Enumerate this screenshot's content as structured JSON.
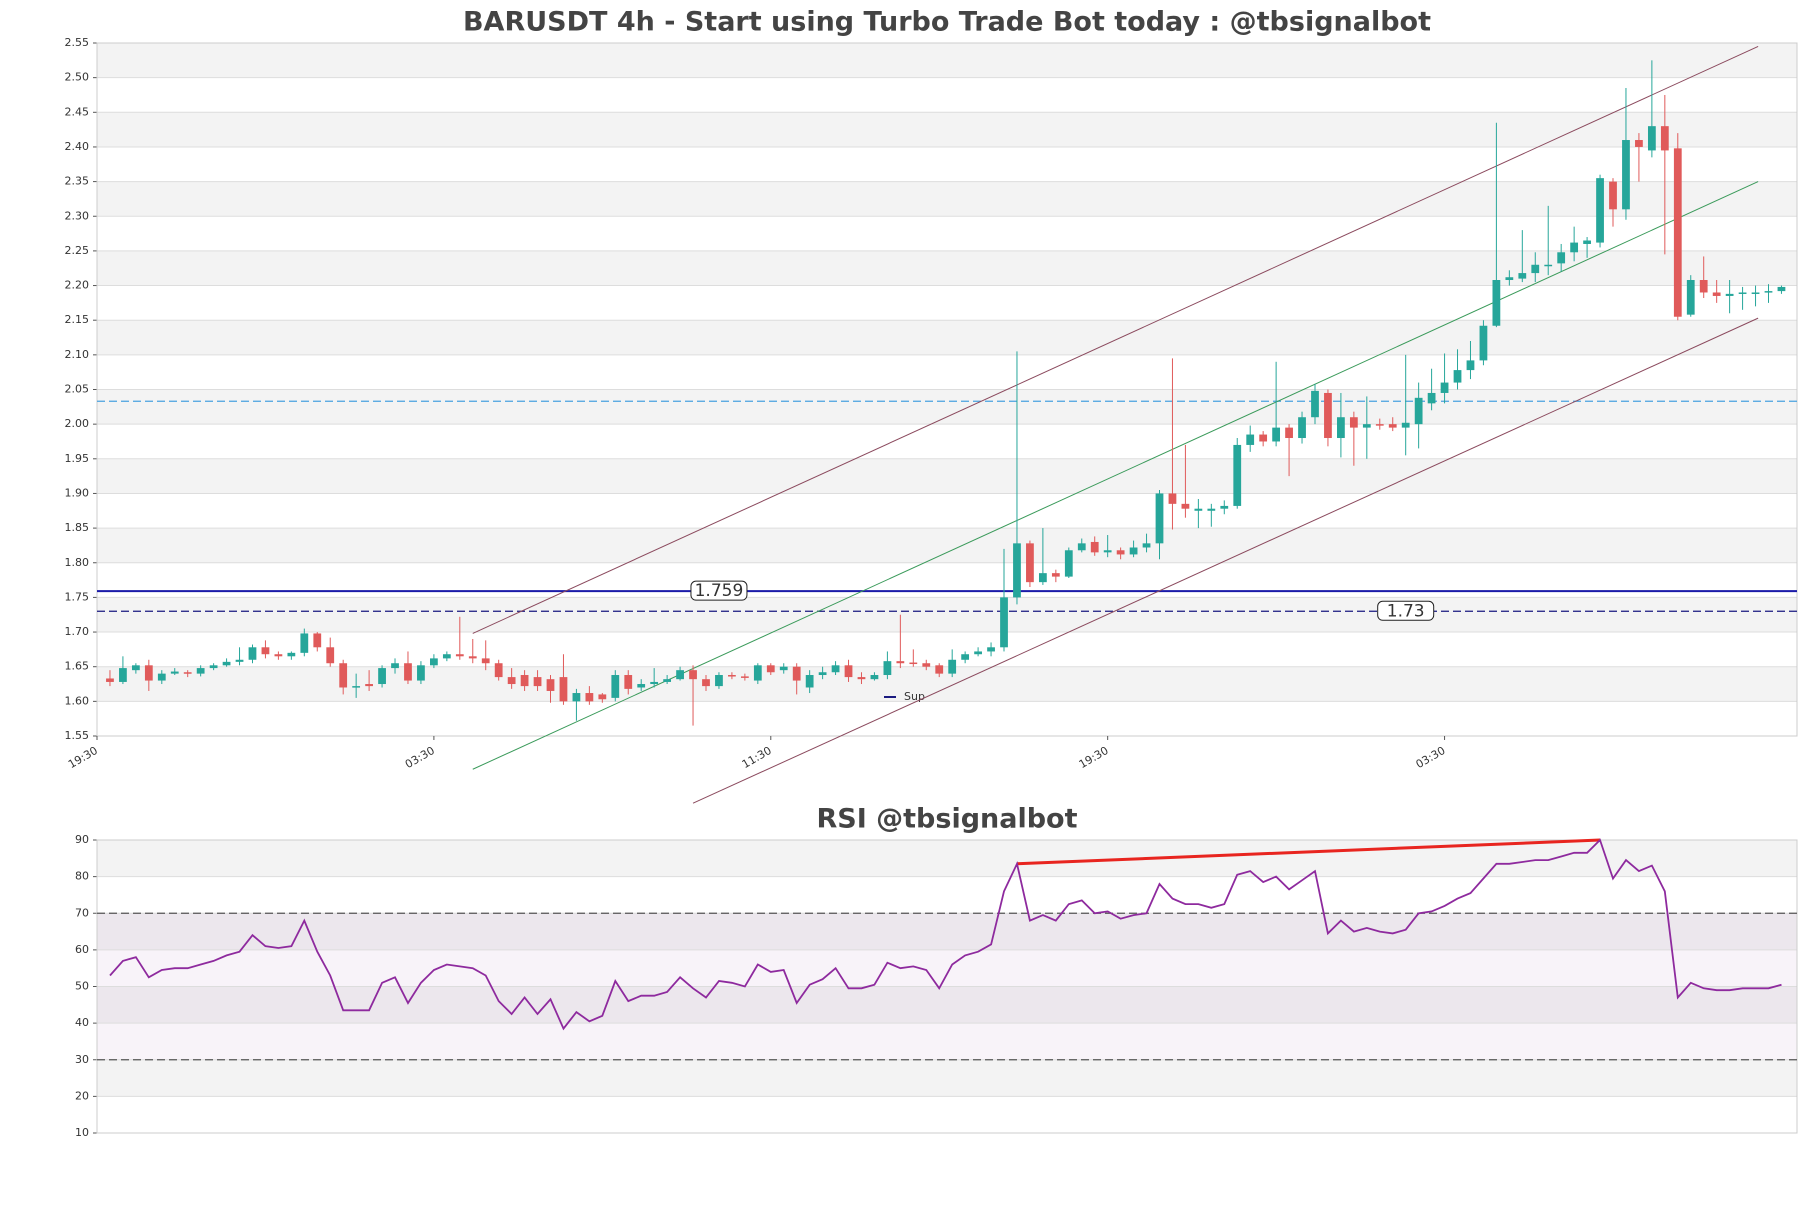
{
  "chart_data": [
    {
      "type": "candlestick",
      "title": "BARUSDT 4h - Start using Turbo Trade Bot today : @tbsignalbot",
      "up_color": "#26a69a",
      "down_color": "#e05a5a",
      "open": [
        1.633,
        1.628,
        1.645,
        1.652,
        1.63,
        1.64,
        1.642,
        1.64,
        1.648,
        1.652,
        1.657,
        1.66,
        1.678,
        1.668,
        1.665,
        1.67,
        1.698,
        1.678,
        1.655,
        1.62,
        1.625,
        1.625,
        1.648,
        1.655,
        1.63,
        1.652,
        1.662,
        1.668,
        1.665,
        1.662,
        1.655,
        1.635,
        1.638,
        1.635,
        1.632,
        1.635,
        1.6,
        1.612,
        1.61,
        1.605,
        1.638,
        1.62,
        1.625,
        1.628,
        1.632,
        1.645,
        1.632,
        1.622,
        1.638,
        1.636,
        1.63,
        1.652,
        1.645,
        1.65,
        1.62,
        1.638,
        1.642,
        1.652,
        1.635,
        1.632,
        1.638,
        1.658,
        1.656,
        1.655,
        1.652,
        1.64,
        1.66,
        1.668,
        1.672,
        1.678,
        1.75,
        1.828,
        1.772,
        1.785,
        1.78,
        1.818,
        1.83,
        1.815,
        1.818,
        1.812,
        1.822,
        1.828,
        1.9,
        1.885,
        1.875,
        1.875,
        1.878,
        1.882,
        1.97,
        1.985,
        1.975,
        1.995,
        1.98,
        2.01,
        2.045,
        1.98,
        2.01,
        1.995,
        2.0,
        2.0,
        1.995,
        2.0,
        2.03,
        2.045,
        2.06,
        2.078,
        2.092,
        2.142,
        2.208,
        2.21,
        2.218,
        2.228,
        2.232,
        2.248,
        2.26,
        2.262,
        2.35,
        2.31,
        2.41,
        2.395,
        2.43,
        2.398,
        2.158,
        2.208,
        2.19,
        2.185,
        2.188,
        2.188,
        2.19,
        2.192
      ],
      "high": [
        1.645,
        1.665,
        1.655,
        1.66,
        1.645,
        1.648,
        1.645,
        1.652,
        1.655,
        1.662,
        1.678,
        1.682,
        1.688,
        1.672,
        1.672,
        1.705,
        1.7,
        1.692,
        1.66,
        1.64,
        1.645,
        1.652,
        1.662,
        1.672,
        1.658,
        1.668,
        1.672,
        1.722,
        1.69,
        1.688,
        1.66,
        1.648,
        1.645,
        1.645,
        1.638,
        1.668,
        1.618,
        1.622,
        1.612,
        1.645,
        1.645,
        1.632,
        1.648,
        1.638,
        1.65,
        1.652,
        1.638,
        1.642,
        1.642,
        1.64,
        1.655,
        1.655,
        1.655,
        1.655,
        1.645,
        1.65,
        1.658,
        1.66,
        1.642,
        1.642,
        1.672,
        1.725,
        1.675,
        1.66,
        1.655,
        1.675,
        1.672,
        1.678,
        1.685,
        1.82,
        2.105,
        1.832,
        1.85,
        1.79,
        1.822,
        1.835,
        1.838,
        1.84,
        1.822,
        1.832,
        1.842,
        1.905,
        2.095,
        1.97,
        1.892,
        1.885,
        1.89,
        1.98,
        1.998,
        1.99,
        2.09,
        2.0,
        2.018,
        2.058,
        2.05,
        2.045,
        2.018,
        2.04,
        2.008,
        2.01,
        2.1,
        2.06,
        2.08,
        2.102,
        2.108,
        2.12,
        2.15,
        2.435,
        2.222,
        2.28,
        2.248,
        2.315,
        2.26,
        2.285,
        2.27,
        2.36,
        2.355,
        2.485,
        2.42,
        2.525,
        2.475,
        2.42,
        2.215,
        2.242,
        2.208,
        2.208,
        2.198,
        2.2,
        2.202,
        2.2
      ],
      "low": [
        1.622,
        1.625,
        1.64,
        1.615,
        1.625,
        1.638,
        1.635,
        1.636,
        1.645,
        1.65,
        1.652,
        1.655,
        1.662,
        1.66,
        1.66,
        1.665,
        1.672,
        1.65,
        1.61,
        1.605,
        1.615,
        1.62,
        1.64,
        1.625,
        1.625,
        1.648,
        1.658,
        1.66,
        1.655,
        1.645,
        1.63,
        1.618,
        1.615,
        1.615,
        1.598,
        1.595,
        1.572,
        1.595,
        1.598,
        1.6,
        1.61,
        1.615,
        1.62,
        1.625,
        1.63,
        1.565,
        1.615,
        1.618,
        1.632,
        1.63,
        1.625,
        1.638,
        1.64,
        1.61,
        1.612,
        1.632,
        1.638,
        1.628,
        1.625,
        1.63,
        1.632,
        1.648,
        1.65,
        1.645,
        1.635,
        1.635,
        1.655,
        1.665,
        1.665,
        1.672,
        1.74,
        1.765,
        1.768,
        1.772,
        1.778,
        1.815,
        1.81,
        1.808,
        1.805,
        1.808,
        1.815,
        1.805,
        1.848,
        1.865,
        1.85,
        1.852,
        1.87,
        1.878,
        1.96,
        1.968,
        1.968,
        1.925,
        1.972,
        2.0,
        1.968,
        1.952,
        1.94,
        1.95,
        1.992,
        1.99,
        1.955,
        1.965,
        2.02,
        2.03,
        2.05,
        2.065,
        2.085,
        2.14,
        2.2,
        2.205,
        2.205,
        2.215,
        2.22,
        2.235,
        2.24,
        2.255,
        2.285,
        2.295,
        2.35,
        2.385,
        2.245,
        2.15,
        2.155,
        2.182,
        2.175,
        2.16,
        2.165,
        2.17,
        2.175,
        2.188
      ],
      "close": [
        1.628,
        1.648,
        1.652,
        1.63,
        1.64,
        1.643,
        1.64,
        1.648,
        1.652,
        1.657,
        1.66,
        1.678,
        1.668,
        1.665,
        1.67,
        1.698,
        1.678,
        1.655,
        1.62,
        1.622,
        1.622,
        1.648,
        1.655,
        1.63,
        1.652,
        1.662,
        1.668,
        1.665,
        1.662,
        1.655,
        1.635,
        1.625,
        1.622,
        1.622,
        1.615,
        1.6,
        1.612,
        1.6,
        1.603,
        1.638,
        1.618,
        1.625,
        1.628,
        1.632,
        1.645,
        1.632,
        1.622,
        1.638,
        1.636,
        1.634,
        1.652,
        1.642,
        1.65,
        1.63,
        1.638,
        1.642,
        1.652,
        1.635,
        1.632,
        1.638,
        1.658,
        1.655,
        1.655,
        1.65,
        1.64,
        1.66,
        1.668,
        1.672,
        1.678,
        1.75,
        1.828,
        1.772,
        1.785,
        1.78,
        1.818,
        1.828,
        1.815,
        1.818,
        1.812,
        1.822,
        1.828,
        1.9,
        1.885,
        1.878,
        1.878,
        1.878,
        1.882,
        1.97,
        1.985,
        1.975,
        1.995,
        1.98,
        2.01,
        2.048,
        1.98,
        2.01,
        1.995,
        2.0,
        1.998,
        1.995,
        2.002,
        2.038,
        2.045,
        2.06,
        2.078,
        2.092,
        2.142,
        2.208,
        2.212,
        2.218,
        2.23,
        2.23,
        2.248,
        2.262,
        2.265,
        2.355,
        2.31,
        2.41,
        2.4,
        2.43,
        2.395,
        2.155,
        2.208,
        2.19,
        2.185,
        2.188,
        2.19,
        2.19,
        2.192,
        2.198
      ],
      "xlim": [
        -1,
        130.2
      ],
      "xticks": [
        {
          "value": -1,
          "label": "19:30"
        },
        {
          "value": 25,
          "label": "03:30"
        },
        {
          "value": 51,
          "label": "11:30"
        },
        {
          "value": 77,
          "label": "19:30"
        },
        {
          "value": 103,
          "label": "03:30"
        }
      ],
      "ylim": [
        1.55,
        2.55
      ],
      "yticks": [
        1.55,
        {
          "value": 1.6,
          "label": "1.60"
        },
        1.65,
        {
          "value": 1.7,
          "label": "1.70"
        },
        1.75,
        {
          "value": 1.8,
          "label": "1.80"
        },
        1.85,
        {
          "value": 1.9,
          "label": "1.90"
        },
        1.95,
        {
          "value": 2,
          "label": "2.00"
        },
        2.05,
        {
          "value": 2.1,
          "label": "2.10"
        },
        2.15,
        {
          "value": 2.2,
          "label": "2.20"
        },
        2.25,
        {
          "value": 2.3,
          "label": "2.30"
        },
        2.35,
        {
          "value": 2.4,
          "label": "2.40"
        },
        2.45,
        {
          "value": 2.5,
          "label": "2.50"
        },
        2.55
      ],
      "levels": [
        {
          "value": 2.033,
          "color": "#4aa3df",
          "style": "dashed"
        },
        {
          "value": 1.759,
          "color": "#1a1aa8",
          "style": "solid",
          "show_label": true
        },
        {
          "name": "Sup",
          "value": 1.73,
          "color": "#1a1a80",
          "style": "dashed",
          "show_label": true
        }
      ],
      "trendlines": [
        {
          "x": [
            28,
            127.2
          ],
          "values": [
            1.698,
            2.545
          ],
          "color": "#8b4a5e"
        },
        {
          "x": [
            28,
            127.2
          ],
          "values": [
            1.502,
            2.35
          ],
          "color": "#3a9a5a"
        },
        {
          "x": [
            45,
            127.2
          ],
          "values": [
            1.453,
            2.153
          ],
          "color": "#8b4a5e"
        }
      ]
    },
    {
      "type": "line",
      "title": "RSI @tbsignalbot",
      "color": "#8e2a9e",
      "values": [
        53,
        57,
        58,
        52.5,
        54.5,
        55,
        55,
        56,
        57,
        58.5,
        59.5,
        64,
        61,
        60.5,
        61,
        68,
        59.5,
        53,
        43.5,
        43.5,
        43.5,
        51,
        52.5,
        45.5,
        51,
        54.5,
        56,
        55.5,
        55,
        53,
        46,
        42.5,
        47,
        42.5,
        46.5,
        38.5,
        43,
        40.5,
        42,
        51.5,
        46,
        47.5,
        47.5,
        48.5,
        52.5,
        49.5,
        47,
        51.5,
        51,
        50,
        56,
        54,
        54.5,
        45.5,
        50.5,
        52,
        55,
        49.5,
        49.5,
        50.5,
        56.5,
        55,
        55.5,
        54.5,
        49.5,
        56,
        58.5,
        59.5,
        61.5,
        76,
        83.5,
        68,
        69.5,
        68,
        72.5,
        73.5,
        70,
        70.5,
        68.5,
        69.5,
        70,
        78,
        74,
        72.5,
        72.5,
        71.5,
        72.5,
        80.5,
        81.5,
        78.5,
        80,
        76.5,
        79,
        81.5,
        64.5,
        68,
        65,
        66,
        65,
        64.5,
        65.5,
        70,
        70.5,
        72,
        74,
        75.5,
        79.5,
        83.5,
        83.5,
        84,
        84.5,
        84.5,
        85.5,
        86.5,
        86.5,
        90,
        79.5,
        84.5,
        81.5,
        83,
        76,
        47,
        51,
        49.5,
        49,
        49,
        49.5,
        49.5,
        49.5,
        50.5
      ],
      "xlim": [
        -1,
        130.2
      ],
      "ylim": [
        10,
        90
      ],
      "yticks": [
        10,
        20,
        30,
        40,
        50,
        60,
        70,
        80,
        90
      ],
      "levels": [
        {
          "value": 30,
          "color": "#555555",
          "style": "dashed"
        },
        {
          "value": 70,
          "color": "#555555",
          "style": "dashed"
        }
      ],
      "trendlines": [
        {
          "x": [
            70,
            115
          ],
          "values": [
            83.5,
            90
          ],
          "color": "#e8251f"
        }
      ]
    }
  ]
}
